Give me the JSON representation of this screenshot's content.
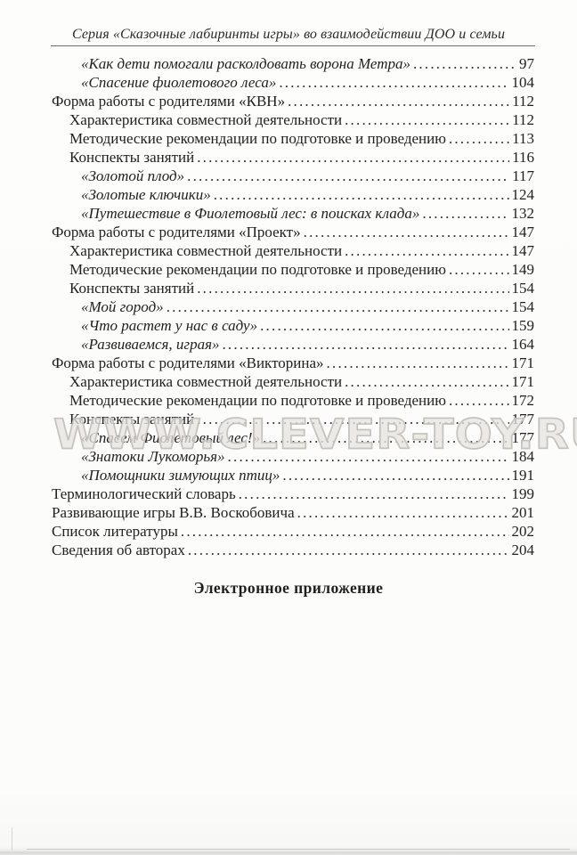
{
  "page": {
    "running_header": "Серия «Сказочные лабиринты игры» во взаимодействии ДОО и семьи",
    "watermark": "WWW.CLEVER-TOY.RU",
    "section_heading": "Электронное приложение"
  },
  "colors": {
    "text": "#1f1f1f",
    "header_rule": "#6e6e6e",
    "watermark_outline": "#c4c0b9",
    "paper": "#fdfdfc"
  },
  "toc": {
    "entries": [
      {
        "title": "«Как дети помогали расколдовать ворона Метра»",
        "page": "97",
        "level": 2,
        "italic": true
      },
      {
        "title": "«Спасение фиолетового леса»",
        "page": "104",
        "level": 2,
        "italic": true
      },
      {
        "title": "Форма работы с родителями «КВН»",
        "page": "112",
        "level": 0,
        "italic": false
      },
      {
        "title": "Характеристика совместной деятельности",
        "page": "112",
        "level": 1,
        "italic": false
      },
      {
        "title": "Методические рекомендации по подготовке и проведению",
        "page": "113",
        "level": 1,
        "italic": false
      },
      {
        "title": "Конспекты занятий",
        "page": "116",
        "level": 1,
        "italic": false
      },
      {
        "title": "«Золотой плод»",
        "page": "117",
        "level": 2,
        "italic": true
      },
      {
        "title": "«Золотые ключики»",
        "page": "124",
        "level": 2,
        "italic": true
      },
      {
        "title": "«Путешествие в Фиолетовый лес: в поисках клада»",
        "page": "132",
        "level": 2,
        "italic": true
      },
      {
        "title": "Форма работы с родителями «Проект»",
        "page": "147",
        "level": 0,
        "italic": false
      },
      {
        "title": "Характеристика совместной деятельности",
        "page": "147",
        "level": 1,
        "italic": false
      },
      {
        "title": "Методические рекомендации по подготовке и проведению",
        "page": "149",
        "level": 1,
        "italic": false
      },
      {
        "title": "Конспекты занятий",
        "page": "154",
        "level": 1,
        "italic": false
      },
      {
        "title": "«Мой город»",
        "page": "154",
        "level": 2,
        "italic": true
      },
      {
        "title": "«Что растет у нас в саду»",
        "page": "159",
        "level": 2,
        "italic": true
      },
      {
        "title": "«Развиваемся, играя»",
        "page": "164",
        "level": 2,
        "italic": true
      },
      {
        "title": "Форма работы с родителями «Викторина»",
        "page": "171",
        "level": 0,
        "italic": false
      },
      {
        "title": "Характеристика совместной деятельности",
        "page": "171",
        "level": 1,
        "italic": false
      },
      {
        "title": "Методические рекомендации по подготовке и проведению",
        "page": "172",
        "level": 1,
        "italic": false
      },
      {
        "title": "Конспекты занятий",
        "page": "177",
        "level": 1,
        "italic": false
      },
      {
        "title": "«Спасем Фиолетовый лес!»",
        "page": "177",
        "level": 2,
        "italic": true
      },
      {
        "title": "«Знатоки Лукоморья»",
        "page": "184",
        "level": 2,
        "italic": true
      },
      {
        "title": "«Помощники зимующих птиц»",
        "page": "191",
        "level": 2,
        "italic": true
      },
      {
        "title": "Терминологический словарь",
        "page": "199",
        "level": 0,
        "italic": false
      },
      {
        "title": "Развивающие игры В.В. Воскобовича",
        "page": "201",
        "level": 0,
        "italic": false
      },
      {
        "title": "Список литературы",
        "page": "202",
        "level": 0,
        "italic": false
      },
      {
        "title": "Сведения об авторах",
        "page": "204",
        "level": 0,
        "italic": false
      }
    ]
  }
}
